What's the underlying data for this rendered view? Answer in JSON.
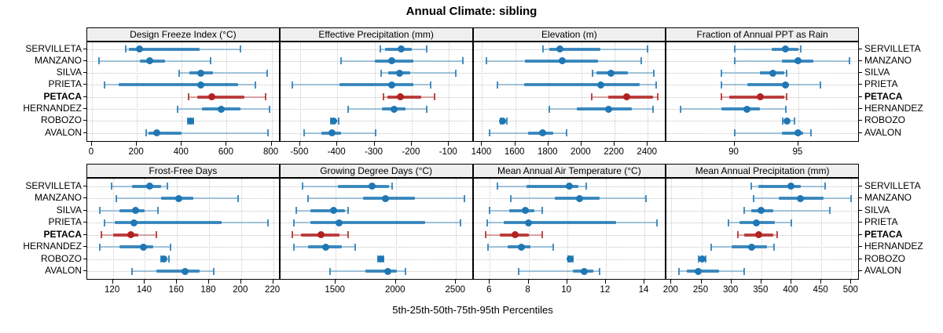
{
  "title": "Annual Climate: sibling",
  "caption": "5th-25th-50th-75th-95th Percentiles",
  "chart_data": {
    "type": "dotplot",
    "title": "Annual Climate: sibling",
    "xlabel": "5th-25th-50th-75th-95th Percentiles",
    "grid": true,
    "legend": "none",
    "sites": [
      "SERVILLETA",
      "MANZANO",
      "SILVA",
      "PRIETA",
      "PETACA",
      "HERNANDEZ",
      "ROBOZO",
      "AVALON"
    ],
    "highlight_site": "PETACA",
    "colors": {
      "series": "#1f77b4",
      "highlight": "#b22222"
    },
    "percentiles": [
      5,
      25,
      50,
      75,
      95
    ],
    "panels": [
      {
        "title": "Design Freeze Index (°C)",
        "xlim": [
          -21,
          839
        ],
        "ticks": [
          0,
          200,
          400,
          600,
          800
        ],
        "values": {
          "SERVILLETA": [
            150,
            165,
            210,
            480,
            660
          ],
          "MANZANO": [
            30,
            215,
            258,
            325,
            530
          ],
          "SILVA": [
            390,
            435,
            483,
            540,
            780
          ],
          "PRIETA": [
            55,
            120,
            483,
            650,
            727
          ],
          "PETACA": [
            430,
            468,
            535,
            680,
            775
          ],
          "HERNANDEZ": [
            380,
            490,
            577,
            660,
            790
          ],
          "ROBOZO": [
            428,
            433,
            438,
            444,
            452
          ],
          "AVALON": [
            240,
            252,
            290,
            398,
            783
          ]
        }
      },
      {
        "title": "Effective Precipitation (mm)",
        "xlim": [
          -553,
          -34
        ],
        "ticks": [
          -500,
          -400,
          -300,
          -200,
          -100
        ],
        "values": {
          "SERVILLETA": [
            -285,
            -272,
            -228,
            -200,
            -160
          ],
          "MANZANO": [
            -390,
            -300,
            -253,
            -196,
            -62
          ],
          "SILVA": [
            -283,
            -263,
            -232,
            -203,
            -81
          ],
          "PRIETA": [
            -521,
            -394,
            -253,
            -196,
            -149
          ],
          "PETACA": [
            -275,
            -265,
            -230,
            -175,
            -138
          ],
          "HERNANDEZ": [
            -370,
            -281,
            -247,
            -217,
            -160
          ],
          "ROBOZO": [
            -418,
            -413,
            -409,
            -404,
            -396
          ],
          "AVALON": [
            -489,
            -442,
            -415,
            -389,
            -296
          ]
        }
      },
      {
        "title": "Elevation (m)",
        "xlim": [
          1348,
          2514
        ],
        "ticks": [
          1400,
          1600,
          1800,
          2000,
          2200,
          2400
        ],
        "values": {
          "SERVILLETA": [
            1770,
            1805,
            1870,
            2115,
            2400
          ],
          "MANZANO": [
            1425,
            1660,
            1885,
            2100,
            2360
          ],
          "SILVA": [
            2065,
            2090,
            2180,
            2280,
            2435
          ],
          "PRIETA": [
            1495,
            1655,
            2115,
            2350,
            2450
          ],
          "PETACA": [
            2060,
            2160,
            2275,
            2430,
            2460
          ],
          "HERNANDEZ": [
            1805,
            1970,
            2165,
            2305,
            2430
          ],
          "ROBOZO": [
            1510,
            1518,
            1525,
            1535,
            1548
          ],
          "AVALON": [
            1445,
            1680,
            1765,
            1830,
            1910
          ]
        }
      },
      {
        "title": "Fraction of Annual PPT as Rain",
        "xlim": [
          84.7,
          99.8
        ],
        "ticks": [
          90,
          95
        ],
        "values": {
          "SERVILLETA": [
            90,
            92.9,
            94,
            95,
            95.2
          ],
          "MANZANO": [
            90,
            93.7,
            95,
            96.2,
            99
          ],
          "SILVA": [
            89,
            92,
            93,
            93.9,
            94.1
          ],
          "PRIETA": [
            89,
            91,
            94,
            94.3,
            96.7
          ],
          "PETACA": [
            89,
            89.6,
            92,
            93.9,
            94.1
          ],
          "HERNANDEZ": [
            85.8,
            89,
            91,
            92,
            94
          ],
          "ROBOZO": [
            93.8,
            94,
            94.1,
            94.3,
            94.7
          ],
          "AVALON": [
            90,
            93.7,
            95,
            95.4,
            96
          ]
        }
      },
      {
        "title": "Frost-Free Days",
        "xlim": [
          104,
          224.5
        ],
        "ticks": [
          120,
          140,
          160,
          180,
          200,
          220
        ],
        "values": {
          "SERVILLETA": [
            119,
            132,
            143,
            150,
            154
          ],
          "MANZANO": [
            122,
            150,
            161,
            170,
            198
          ],
          "SILVA": [
            112,
            124,
            134,
            140,
            148
          ],
          "PRIETA": [
            115,
            121,
            133,
            188,
            217
          ],
          "PETACA": [
            113,
            120,
            131,
            136,
            147
          ],
          "HERNANDEZ": [
            112,
            124,
            139,
            145,
            156
          ],
          "ROBOZO": [
            150,
            151,
            152,
            153,
            155
          ],
          "AVALON": [
            132,
            147,
            165,
            174,
            183
          ]
        }
      },
      {
        "title": "Growing Degree Days (°C)",
        "xlim": [
          1040,
          2645
        ],
        "ticks": [
          1500,
          2000,
          2500
        ],
        "values": {
          "SERVILLETA": [
            1225,
            1520,
            1805,
            1940,
            1970
          ],
          "MANZANO": [
            1270,
            1730,
            1915,
            2160,
            2570
          ],
          "SILVA": [
            1170,
            1290,
            1480,
            1575,
            1605
          ],
          "PRIETA": [
            1150,
            1290,
            1530,
            2245,
            2535
          ],
          "PETACA": [
            1140,
            1210,
            1375,
            1530,
            1605
          ],
          "HERNANDEZ": [
            1150,
            1270,
            1420,
            1550,
            1665
          ],
          "ROBOZO": [
            1850,
            1862,
            1872,
            1885,
            1900
          ],
          "AVALON": [
            1455,
            1750,
            1935,
            2010,
            2080
          ]
        }
      },
      {
        "title": "Mean Annual Air Temperature (°C)",
        "xlim": [
          5.15,
          15.15
        ],
        "ticks": [
          6,
          8,
          10,
          12,
          14
        ],
        "values": {
          "SERVILLETA": [
            6.4,
            7.9,
            10.1,
            10.6,
            11.0
          ],
          "MANZANO": [
            7.1,
            9.35,
            10.65,
            11.7,
            14.1
          ],
          "SILVA": [
            6.0,
            7.0,
            7.85,
            8.3,
            8.7
          ],
          "PRIETA": [
            5.85,
            6.7,
            8.0,
            12.55,
            14.65
          ],
          "PETACA": [
            5.8,
            6.5,
            7.3,
            8.0,
            8.7
          ],
          "HERNANDEZ": [
            5.9,
            6.9,
            7.65,
            8.1,
            9.3
          ],
          "ROBOZO": [
            10.05,
            10.1,
            10.15,
            10.2,
            10.3
          ],
          "AVALON": [
            7.5,
            10.3,
            10.9,
            11.35,
            11.7
          ]
        }
      },
      {
        "title": "Mean Annual Precipitation (mm)",
        "xlim": [
          192,
          514
        ],
        "ticks": [
          200,
          250,
          300,
          350,
          400,
          450,
          500
        ],
        "values": {
          "SERVILLETA": [
            333,
            345,
            400,
            416,
            457
          ],
          "MANZANO": [
            337,
            379,
            415,
            454,
            499
          ],
          "SILVA": [
            321,
            333,
            350,
            370,
            464
          ],
          "PRIETA": [
            295,
            313,
            342,
            372,
            400
          ],
          "PETACA": [
            311,
            322,
            345,
            370,
            376
          ],
          "HERNANDEZ": [
            266,
            300,
            334,
            359,
            371
          ],
          "ROBOZO": [
            246,
            249,
            251,
            253,
            257
          ],
          "AVALON": [
            212,
            226,
            245,
            279,
            321
          ]
        }
      }
    ]
  }
}
